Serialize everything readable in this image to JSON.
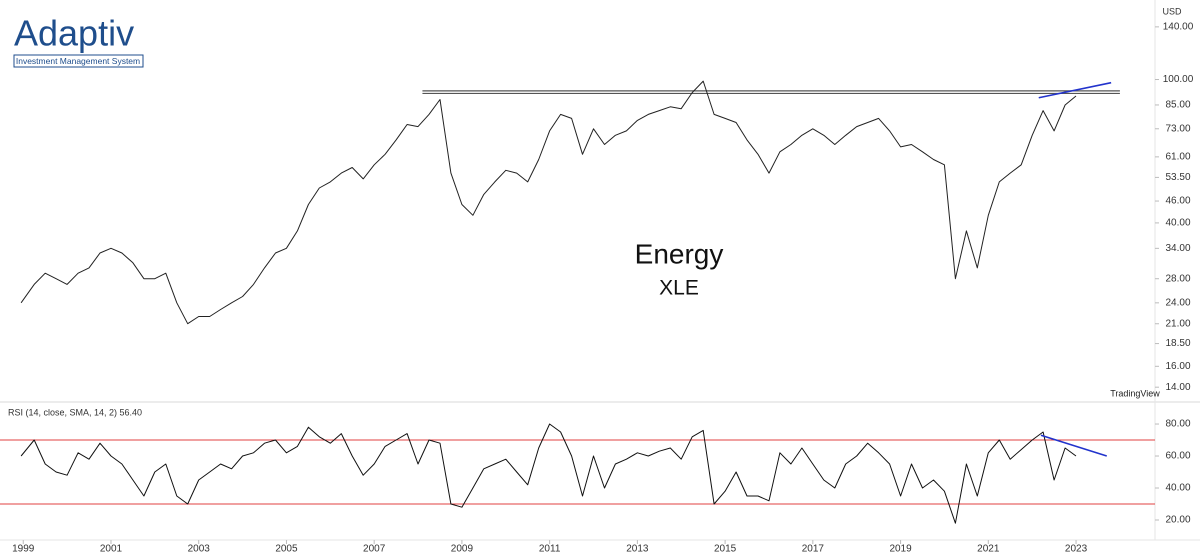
{
  "logo": {
    "name": "Adaptiv",
    "tagline": "Investment Management System"
  },
  "watermark": "TradingView",
  "chart_data": [
    {
      "type": "line",
      "title": "Energy",
      "subtitle": "XLE",
      "y_unit": "USD",
      "log_scale": true,
      "color": "#222222",
      "x": [
        1998.95,
        1999.25,
        1999.5,
        1999.75,
        2000.0,
        2000.25,
        2000.5,
        2000.75,
        2001.0,
        2001.25,
        2001.5,
        2001.75,
        2002.0,
        2002.25,
        2002.5,
        2002.75,
        2003.0,
        2003.25,
        2003.5,
        2003.75,
        2004.0,
        2004.25,
        2004.5,
        2004.75,
        2005.0,
        2005.25,
        2005.5,
        2005.75,
        2006.0,
        2006.25,
        2006.5,
        2006.75,
        2007.0,
        2007.25,
        2007.5,
        2007.75,
        2008.0,
        2008.25,
        2008.5,
        2008.75,
        2009.0,
        2009.25,
        2009.5,
        2009.75,
        2010.0,
        2010.25,
        2010.5,
        2010.75,
        2011.0,
        2011.25,
        2011.5,
        2011.75,
        2012.0,
        2012.25,
        2012.5,
        2012.75,
        2013.0,
        2013.25,
        2013.5,
        2013.75,
        2014.0,
        2014.25,
        2014.5,
        2014.75,
        2015.0,
        2015.25,
        2015.5,
        2015.75,
        2016.0,
        2016.25,
        2016.5,
        2016.75,
        2017.0,
        2017.25,
        2017.5,
        2017.75,
        2018.0,
        2018.25,
        2018.5,
        2018.75,
        2019.0,
        2019.25,
        2019.5,
        2019.75,
        2020.0,
        2020.25,
        2020.5,
        2020.75,
        2021.0,
        2021.25,
        2021.5,
        2021.75,
        2022.0,
        2022.25,
        2022.5,
        2022.75,
        2023.0
      ],
      "values": [
        24,
        27,
        29,
        28,
        27,
        29,
        30,
        33,
        34,
        33,
        31,
        28,
        28,
        29,
        24,
        21,
        22,
        22,
        23,
        24,
        25,
        27,
        30,
        33,
        34,
        38,
        45,
        50,
        52,
        55,
        57,
        53,
        58,
        62,
        68,
        75,
        74,
        80,
        88,
        55,
        45,
        42,
        48,
        52,
        56,
        55,
        52,
        60,
        72,
        80,
        78,
        62,
        73,
        66,
        70,
        72,
        77,
        80,
        82,
        84,
        83,
        92,
        99,
        80,
        78,
        76,
        68,
        62,
        55,
        63,
        66,
        70,
        73,
        70,
        66,
        70,
        74,
        76,
        78,
        72,
        65,
        66,
        63,
        60,
        58,
        28,
        38,
        30,
        42,
        52,
        55,
        58,
        70,
        82,
        72,
        85,
        90
      ],
      "xlim": [
        1998.47,
        2024.8
      ],
      "ylim": [
        12.9,
        161
      ],
      "yticks": [
        {
          "value": 140,
          "label": "140.00"
        },
        {
          "value": 100,
          "label": "100.00"
        },
        {
          "value": 85,
          "label": "85.00"
        },
        {
          "value": 73,
          "label": "73.00"
        },
        {
          "value": 61,
          "label": "61.00"
        },
        {
          "value": 53.5,
          "label": "53.50"
        },
        {
          "value": 46,
          "label": "46.00"
        },
        {
          "value": 40,
          "label": "40.00"
        },
        {
          "value": 34,
          "label": "34.00"
        },
        {
          "value": 28,
          "label": "28.00"
        },
        {
          "value": 24,
          "label": "24.00"
        },
        {
          "value": 21,
          "label": "21.00"
        },
        {
          "value": 18.5,
          "label": "18.50"
        },
        {
          "value": 16,
          "label": "16.00"
        },
        {
          "value": 14,
          "label": "14.00"
        }
      ],
      "resistance": {
        "x": [
          2008.1,
          2024.0
        ],
        "levels": [
          91.5,
          93
        ],
        "color": "#555555"
      },
      "trendline": {
        "x": [
          2022.15,
          2023.8
        ],
        "values": [
          89,
          98
        ],
        "color": "#2233cc"
      }
    },
    {
      "type": "line",
      "title": "RSI (14, close, SMA, 14, 2)  56.40",
      "color": "#111111",
      "x": [
        1998.95,
        1999.25,
        1999.5,
        1999.75,
        2000.0,
        2000.25,
        2000.5,
        2000.75,
        2001.0,
        2001.25,
        2001.5,
        2001.75,
        2002.0,
        2002.25,
        2002.5,
        2002.75,
        2003.0,
        2003.25,
        2003.5,
        2003.75,
        2004.0,
        2004.25,
        2004.5,
        2004.75,
        2005.0,
        2005.25,
        2005.5,
        2005.75,
        2006.0,
        2006.25,
        2006.5,
        2006.75,
        2007.0,
        2007.25,
        2007.5,
        2007.75,
        2008.0,
        2008.25,
        2008.5,
        2008.75,
        2009.0,
        2009.25,
        2009.5,
        2009.75,
        2010.0,
        2010.25,
        2010.5,
        2010.75,
        2011.0,
        2011.25,
        2011.5,
        2011.75,
        2012.0,
        2012.25,
        2012.5,
        2012.75,
        2013.0,
        2013.25,
        2013.5,
        2013.75,
        2014.0,
        2014.25,
        2014.5,
        2014.75,
        2015.0,
        2015.25,
        2015.5,
        2015.75,
        2016.0,
        2016.25,
        2016.5,
        2016.75,
        2017.0,
        2017.25,
        2017.5,
        2017.75,
        2018.0,
        2018.25,
        2018.5,
        2018.75,
        2019.0,
        2019.25,
        2019.5,
        2019.75,
        2020.0,
        2020.25,
        2020.5,
        2020.75,
        2021.0,
        2021.25,
        2021.5,
        2021.75,
        2022.0,
        2022.25,
        2022.5,
        2022.75,
        2023.0
      ],
      "values": [
        60,
        70,
        55,
        50,
        48,
        62,
        58,
        68,
        60,
        55,
        45,
        35,
        50,
        55,
        35,
        30,
        45,
        50,
        55,
        52,
        60,
        62,
        68,
        70,
        62,
        66,
        78,
        72,
        68,
        74,
        60,
        48,
        55,
        66,
        70,
        74,
        55,
        70,
        68,
        30,
        28,
        40,
        52,
        55,
        58,
        50,
        42,
        65,
        80,
        75,
        60,
        35,
        60,
        40,
        55,
        58,
        62,
        60,
        63,
        65,
        58,
        72,
        76,
        30,
        38,
        50,
        35,
        35,
        32,
        62,
        55,
        65,
        55,
        45,
        40,
        55,
        60,
        68,
        62,
        55,
        35,
        55,
        40,
        45,
        38,
        18,
        55,
        35,
        62,
        70,
        58,
        64,
        70,
        75,
        45,
        65,
        60
      ],
      "xlim": [
        1998.47,
        2024.8
      ],
      "ylim": [
        7.5,
        91.9
      ],
      "yticks": [
        {
          "value": 80,
          "label": "80.00"
        },
        {
          "value": 60,
          "label": "60.00"
        },
        {
          "value": 40,
          "label": "40.00"
        },
        {
          "value": 20,
          "label": "20.00"
        }
      ],
      "xticks": [
        1999,
        2001,
        2003,
        2005,
        2007,
        2009,
        2011,
        2013,
        2015,
        2017,
        2019,
        2021,
        2023
      ],
      "levels": [
        70,
        30
      ],
      "level_color": "#e04040",
      "trendline": {
        "x": [
          2022.2,
          2023.7
        ],
        "values": [
          73,
          60
        ],
        "color": "#2233cc"
      }
    }
  ]
}
